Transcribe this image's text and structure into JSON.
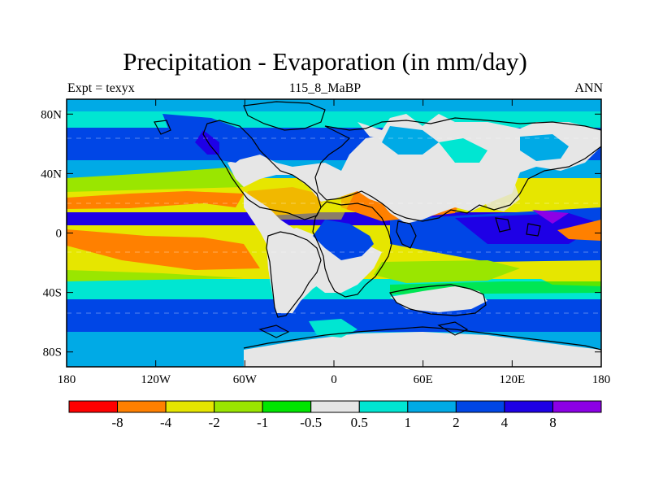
{
  "figure": {
    "title": "Precipitation - Evaporation (in mm/day)",
    "left_string": "Expt = texyx",
    "center_string": "115_8_MaBP",
    "right_string": "ANN"
  },
  "map": {
    "projection": "cylindrical-equidistant",
    "lon_range": [
      -180,
      180
    ],
    "lat_range": [
      -90,
      90
    ],
    "continent_outline_color": "#000000",
    "x_ticks": [
      {
        "lon": -180,
        "label": "180"
      },
      {
        "lon": -120,
        "label": "120W"
      },
      {
        "lon": -60,
        "label": "60W"
      },
      {
        "lon": 0,
        "label": "0"
      },
      {
        "lon": 60,
        "label": "60E"
      },
      {
        "lon": 120,
        "label": "120E"
      },
      {
        "lon": 180,
        "label": "180"
      }
    ],
    "y_ticks": [
      {
        "lat": 80,
        "label": "80N"
      },
      {
        "lat": 40,
        "label": "40N"
      },
      {
        "lat": 0,
        "label": "0"
      },
      {
        "lat": -40,
        "label": "40S"
      },
      {
        "lat": -80,
        "label": "80S"
      }
    ]
  },
  "colorbar": {
    "colors": [
      "#ff0000",
      "#ff8000",
      "#e6e600",
      "#9ae600",
      "#00e600",
      "#e6e6e6",
      "#00e6d2",
      "#00aae6",
      "#0046e6",
      "#1e00e6",
      "#8c00e6"
    ],
    "labels": [
      "-8",
      "-4",
      "-2",
      "-1",
      "-0.5",
      "0.5",
      "1",
      "2",
      "4",
      "8"
    ]
  }
}
